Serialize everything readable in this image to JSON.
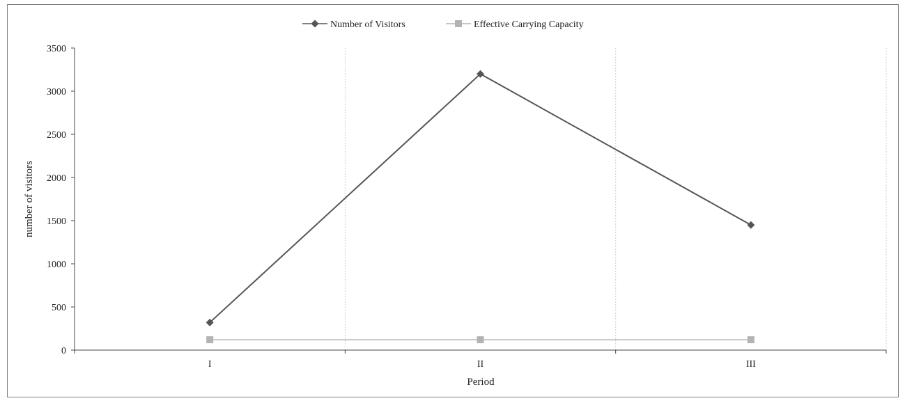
{
  "chart_data": {
    "type": "line",
    "title": "",
    "xlabel": "Period",
    "ylabel": "number of visitors",
    "categories": [
      "I",
      "II",
      "III"
    ],
    "ylim": [
      0,
      3500
    ],
    "yticks": [
      0,
      500,
      1000,
      1500,
      2000,
      2500,
      3000,
      3500
    ],
    "grid": "vertical-dotted",
    "legend": "top-center",
    "series": [
      {
        "name": "Number of Visitors",
        "values": [
          320,
          3200,
          1450
        ],
        "color": "#555555",
        "marker": "diamond"
      },
      {
        "name": "Effective Carrying Capacity",
        "values": [
          120,
          120,
          120
        ],
        "color": "#b3b3b3",
        "marker": "square"
      }
    ]
  }
}
